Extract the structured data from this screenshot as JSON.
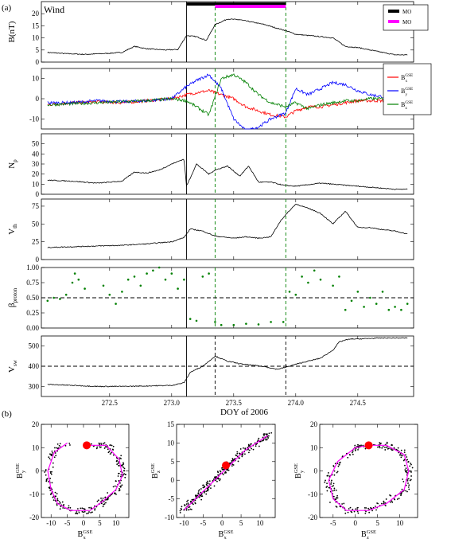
{
  "panel_labels": {
    "a": "(a)",
    "b": "(b)"
  },
  "spacecraft_label": "Wind",
  "xlabel": "DOY of 2006",
  "chart_data": [
    {
      "type": "line",
      "id": "b-magnitude",
      "ylabel": "B(nT)",
      "ylim": [
        0,
        25
      ],
      "yticks": [
        0,
        5,
        10,
        15,
        20
      ],
      "legend": {
        "placement": "top-right",
        "entries": [
          {
            "name": "MO",
            "color": "#000000"
          },
          {
            "name": "MO",
            "color": "#ff00ff"
          }
        ]
      },
      "series": [
        {
          "name": "",
          "color": "#000000",
          "x": [
            272.0,
            272.15,
            272.3,
            272.45,
            272.6,
            272.7,
            272.8,
            272.95,
            273.05,
            273.12,
            273.2,
            273.28,
            273.35,
            273.45,
            273.55,
            273.65,
            273.75,
            273.85,
            273.92,
            274.0,
            274.1,
            274.2,
            274.3,
            274.4,
            274.5,
            274.6,
            274.7,
            274.8,
            274.9
          ],
          "y": [
            4,
            3.5,
            3.2,
            3.5,
            4,
            6.5,
            5.5,
            5,
            5.2,
            11,
            10.5,
            9,
            15.5,
            17.8,
            17.5,
            16.5,
            15.5,
            14,
            13,
            11.5,
            11,
            10.5,
            10,
            6.5,
            6,
            5,
            4,
            3,
            3
          ]
        }
      ]
    },
    {
      "type": "line",
      "id": "b-components",
      "ylabel": "",
      "ylim": [
        -15,
        15
      ],
      "yticks": [
        -10,
        0,
        10
      ],
      "legend": {
        "placement": "top-right",
        "entries": [
          {
            "name": "B",
            "sub": "x",
            "sup": "GSE",
            "color": "#ff0000"
          },
          {
            "name": "B",
            "sub": "y",
            "sup": "GSE",
            "color": "#0000ff"
          },
          {
            "name": "B",
            "sub": "z",
            "sup": "GSE",
            "color": "#008000"
          }
        ]
      },
      "series": [
        {
          "name": "Bx GSE",
          "color": "#ff0000",
          "x": [
            272.0,
            272.2,
            272.4,
            272.6,
            272.8,
            273.0,
            273.12,
            273.2,
            273.3,
            273.4,
            273.5,
            273.6,
            273.7,
            273.8,
            273.92,
            274.0,
            274.1,
            274.2,
            274.3,
            274.4,
            274.5,
            274.6,
            274.7,
            274.8,
            274.9
          ],
          "y": [
            -3,
            -2,
            -1.5,
            -2,
            -1,
            0,
            2,
            3,
            4,
            2,
            0,
            -4,
            -6,
            -8,
            -9,
            -6,
            -4,
            -4,
            -3,
            -2,
            -1,
            -1,
            -1,
            -1,
            -1
          ]
        },
        {
          "name": "By GSE",
          "color": "#0000ff",
          "x": [
            272.0,
            272.2,
            272.4,
            272.6,
            272.8,
            273.0,
            273.12,
            273.2,
            273.3,
            273.4,
            273.5,
            273.6,
            273.7,
            273.8,
            273.92,
            274.0,
            274.1,
            274.2,
            274.3,
            274.4,
            274.5,
            274.6,
            274.7,
            274.8,
            274.9
          ],
          "y": [
            -2,
            -2,
            -1,
            -1.5,
            -1,
            0,
            6,
            9,
            12,
            5,
            -10,
            -16,
            -14,
            -10,
            -7,
            5,
            2,
            5,
            8,
            7,
            4,
            2,
            1,
            0,
            0
          ]
        },
        {
          "name": "Bz GSE",
          "color": "#008000",
          "x": [
            272.0,
            272.2,
            272.4,
            272.6,
            272.8,
            273.0,
            273.12,
            273.2,
            273.3,
            273.4,
            273.5,
            273.6,
            273.7,
            273.8,
            273.92,
            274.0,
            274.1,
            274.2,
            274.3,
            274.4,
            274.5,
            274.6,
            274.7,
            274.8,
            274.9
          ],
          "y": [
            -3,
            -2.5,
            -2,
            -1.5,
            -1,
            0,
            -1,
            -4,
            -8,
            10,
            12,
            8,
            2,
            -2,
            -4,
            -2,
            -5,
            -3,
            -2,
            -1,
            -1,
            0,
            0,
            -1,
            -1
          ]
        }
      ]
    },
    {
      "type": "line",
      "id": "proton-density",
      "ylabel": "Np(cm-3)",
      "ylim": [
        0,
        60
      ],
      "yticks": [
        0,
        10,
        20,
        30,
        40,
        50
      ],
      "series": [
        {
          "name": "",
          "color": "#000000",
          "x": [
            272.0,
            272.2,
            272.4,
            272.6,
            272.7,
            272.8,
            272.9,
            273.0,
            273.1,
            273.12,
            273.2,
            273.3,
            273.35,
            273.45,
            273.55,
            273.62,
            273.7,
            273.8,
            273.9,
            274.0,
            274.2,
            274.4,
            274.6,
            274.8,
            274.9
          ],
          "y": [
            14,
            13,
            11,
            13,
            22,
            21,
            24,
            30,
            35,
            8,
            30,
            20,
            24,
            28,
            18,
            28,
            12,
            12,
            9,
            8,
            11,
            9,
            7,
            5,
            5
          ]
        }
      ]
    },
    {
      "type": "line",
      "id": "thermal-speed",
      "ylabel": "Vth(km/s)",
      "ylim": [
        0,
        85
      ],
      "yticks": [
        0,
        25,
        50,
        75
      ],
      "series": [
        {
          "name": "",
          "color": "#000000",
          "x": [
            272.0,
            272.2,
            272.4,
            272.6,
            272.8,
            273.0,
            273.1,
            273.15,
            273.25,
            273.35,
            273.5,
            273.6,
            273.7,
            273.8,
            273.88,
            273.92,
            274.0,
            274.1,
            274.2,
            274.3,
            274.4,
            274.5,
            274.6,
            274.7,
            274.8,
            274.9
          ],
          "y": [
            17,
            18,
            19,
            20,
            22,
            25,
            31,
            43,
            40,
            33,
            30,
            32,
            30,
            32,
            55,
            63,
            78,
            72,
            65,
            50,
            68,
            45,
            45,
            42,
            40,
            36
          ]
        }
      ]
    },
    {
      "type": "scatter",
      "id": "proton-beta",
      "ylabel": "β proton",
      "ylim": [
        0,
        1
      ],
      "yticks": [
        0,
        0.25,
        0.5,
        0.75,
        1.0
      ],
      "ytick_labels": [
        "0.00",
        "0.25",
        "0.50",
        "0.75",
        "1.00"
      ],
      "reference_line": 0.5,
      "series": [
        {
          "name": "",
          "color": "#008000",
          "x": [
            272.0,
            272.05,
            272.1,
            272.15,
            272.2,
            272.22,
            272.25,
            272.3,
            272.45,
            272.5,
            272.55,
            272.6,
            272.65,
            272.7,
            272.75,
            272.8,
            272.85,
            272.9,
            272.95,
            273.0,
            273.05,
            273.1,
            273.15,
            273.2,
            273.25,
            273.3,
            273.35,
            273.4,
            273.5,
            273.6,
            273.7,
            273.8,
            273.9,
            273.95,
            274.0,
            274.05,
            274.1,
            274.15,
            274.2,
            274.3,
            274.35,
            274.4,
            274.45,
            274.5,
            274.55,
            274.6,
            274.65,
            274.7,
            274.75,
            274.8,
            274.85,
            274.9
          ],
          "y": [
            0.45,
            0.5,
            0.48,
            0.55,
            0.75,
            0.9,
            0.8,
            0.65,
            0.7,
            0.55,
            0.4,
            0.6,
            0.8,
            0.85,
            0.7,
            0.9,
            0.95,
            1.0,
            0.8,
            0.9,
            0.65,
            0.8,
            0.15,
            0.12,
            0.85,
            0.9,
            0.1,
            0.05,
            0.05,
            0.07,
            0.06,
            0.1,
            0.1,
            0.6,
            0.55,
            0.85,
            0.75,
            0.95,
            0.8,
            0.7,
            0.85,
            0.3,
            0.45,
            0.6,
            0.35,
            0.5,
            0.4,
            0.6,
            0.3,
            0.35,
            0.3,
            0.4
          ]
        }
      ]
    },
    {
      "type": "line",
      "id": "solar-wind-speed",
      "ylabel": "Vsw(km/s)",
      "ylim": [
        250,
        550
      ],
      "yticks": [
        300,
        400,
        500
      ],
      "reference_line": 400,
      "series": [
        {
          "name": "",
          "color": "#000000",
          "x": [
            272.0,
            272.2,
            272.4,
            272.6,
            272.8,
            273.0,
            273.1,
            273.15,
            273.25,
            273.35,
            273.45,
            273.55,
            273.65,
            273.75,
            273.85,
            273.92,
            274.0,
            274.1,
            274.2,
            274.3,
            274.35,
            274.4,
            274.45,
            274.5,
            274.6,
            274.7,
            274.8,
            274.9
          ],
          "y": [
            310,
            305,
            300,
            300,
            302,
            305,
            318,
            370,
            400,
            450,
            425,
            412,
            405,
            398,
            385,
            395,
            410,
            425,
            440,
            480,
            520,
            530,
            535,
            535,
            538,
            540,
            540,
            540
          ]
        }
      ]
    },
    {
      "type": "scatter",
      "id": "hodogram-bx-by",
      "xlabel": "B",
      "xlabel_sub": "x",
      "xlabel_sup": "GSE",
      "ylabel": "B",
      "ylabel_sub": "y",
      "ylabel_sup": "GSE",
      "xlim": [
        -13,
        14
      ],
      "ylim": [
        -20,
        20
      ],
      "xticks": [
        -10,
        -5,
        0,
        5,
        10
      ],
      "yticks": [
        -20,
        -10,
        0,
        10,
        20
      ],
      "start_point": [
        1,
        11
      ],
      "path": {
        "x": [
          1,
          7,
          11,
          12,
          10,
          6,
          2,
          -4,
          -8,
          -10,
          -11,
          -9,
          -5
        ],
        "y": [
          11,
          11,
          5,
          -2,
          -8,
          -13,
          -17,
          -17,
          -14,
          -8,
          0,
          8,
          12
        ]
      }
    },
    {
      "type": "scatter",
      "id": "hodogram-bx-bz",
      "xlabel": "B",
      "xlabel_sub": "x",
      "xlabel_sup": "GSE",
      "ylabel": "B",
      "ylabel_sub": "z",
      "ylabel_sup": "GSE",
      "xlim": [
        -12,
        14
      ],
      "ylim": [
        -10,
        15
      ],
      "xticks": [
        -10,
        -5,
        0,
        5,
        10
      ],
      "yticks": [
        -10,
        -5,
        0,
        5,
        10,
        15
      ],
      "start_point": [
        1,
        4
      ],
      "path": {
        "x": [
          -10,
          -8,
          -6,
          -3,
          0,
          3,
          6,
          9,
          12
        ],
        "y": [
          -8,
          -6,
          -4,
          -1,
          2,
          5,
          8,
          10,
          12
        ]
      }
    },
    {
      "type": "scatter",
      "id": "hodogram-bz-by",
      "xlabel": "B",
      "xlabel_sub": "z",
      "xlabel_sup": "GSE",
      "ylabel": "B",
      "ylabel_sub": "y",
      "ylabel_sup": "GSE",
      "xlim": [
        -8,
        14
      ],
      "ylim": [
        -20,
        20
      ],
      "xticks": [
        -5,
        0,
        5,
        10
      ],
      "yticks": [
        -20,
        -10,
        0,
        10,
        20
      ],
      "start_point": [
        3,
        11
      ],
      "path": {
        "x": [
          3,
          7,
          11,
          12,
          11,
          7,
          3,
          -2,
          -5,
          -6,
          -4,
          0,
          3
        ],
        "y": [
          11,
          11,
          7,
          0,
          -8,
          -14,
          -17,
          -17,
          -12,
          -4,
          4,
          10,
          11
        ]
      }
    }
  ],
  "time_axis": {
    "xlim": [
      271.95,
      274.95
    ],
    "xticks": [
      272.5,
      273.0,
      273.5,
      274.0,
      274.5
    ],
    "xtick_labels": [
      "272.5",
      "273.0",
      "273.5",
      "274.0",
      "274.5"
    ],
    "shock_time": 273.12,
    "mo_interval": [
      273.12,
      273.92
    ],
    "mo_magenta_interval": [
      273.35,
      273.92
    ],
    "mo_boundaries_dashed": [
      273.35,
      273.92
    ]
  },
  "colors": {
    "bx": "#ff0000",
    "by": "#0000ff",
    "bz": "#008000",
    "mo_black": "#000000",
    "mo_magenta": "#ff00ff",
    "start": "#ff0000"
  }
}
